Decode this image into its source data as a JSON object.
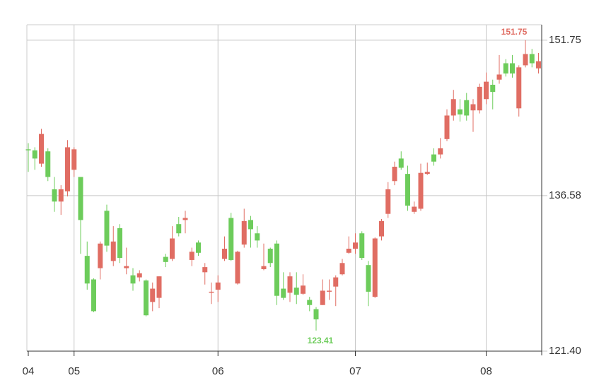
{
  "chart_data": {
    "type": "candlestick",
    "categories": [
      "04",
      null,
      null,
      null,
      null,
      null,
      null,
      "05",
      null,
      null,
      null,
      null,
      null,
      null,
      null,
      null,
      null,
      null,
      null,
      null,
      null,
      null,
      null,
      null,
      null,
      null,
      null,
      null,
      null,
      "06",
      null,
      null,
      null,
      null,
      null,
      null,
      null,
      null,
      null,
      null,
      null,
      null,
      null,
      null,
      null,
      null,
      null,
      null,
      null,
      null,
      "07",
      null,
      null,
      null,
      null,
      null,
      null,
      null,
      null,
      null,
      null,
      null,
      null,
      null,
      null,
      null,
      null,
      null,
      null,
      null,
      "08",
      null,
      null,
      null,
      null,
      null,
      null,
      null,
      null
    ],
    "open": [
      141.1,
      141.0,
      139.7,
      140.9,
      137.2,
      136.0,
      137.0,
      139.1,
      138.4,
      130.7,
      128.4,
      129.5,
      135.1,
      130.2,
      133.4,
      129.5,
      128.8,
      128.6,
      128.3,
      126.2,
      126.6,
      130.6,
      130.4,
      133.8,
      134.2,
      130.3,
      132.0,
      129.1,
      127.1,
      127.4,
      130.4,
      134.4,
      128.0,
      131.8,
      134.2,
      132.9,
      129.4,
      131.4,
      131.9,
      127.5,
      127.1,
      127.6,
      127.0,
      126.4,
      125.5,
      125.9,
      127.2,
      127.7,
      128.9,
      131.0,
      131.4,
      132.9,
      129.8,
      126.7,
      132.6,
      134.8,
      138.0,
      140.2,
      138.7,
      135.0,
      135.3,
      138.7,
      140.6,
      140.6,
      142.1,
      144.4,
      145.0,
      145.9,
      144.9,
      144.9,
      146.0,
      147.4,
      147.9,
      149.5,
      149.5,
      145.1,
      149.3,
      150.4,
      149.0
    ],
    "high": [
      141.7,
      141.3,
      143.1,
      141.2,
      138.4,
      137.6,
      142.0,
      141.3,
      138.4,
      132.1,
      128.5,
      132.1,
      135.7,
      133.6,
      133.8,
      131.5,
      129.5,
      129.3,
      128.4,
      128.1,
      128.7,
      130.9,
      133.6,
      134.5,
      135.1,
      131.5,
      132.2,
      130.0,
      128.1,
      128.8,
      132.6,
      134.9,
      131.2,
      135.3,
      134.6,
      133.6,
      131.9,
      131.5,
      132.2,
      129.1,
      129.1,
      129.1,
      128.9,
      126.7,
      125.7,
      128.4,
      128.4,
      128.8,
      130.4,
      132.6,
      132.9,
      133.1,
      130.2,
      132.5,
      134.3,
      137.9,
      139.9,
      140.9,
      139.5,
      136.0,
      139.7,
      139.8,
      141.2,
      142.2,
      145.0,
      146.9,
      146.0,
      146.6,
      146.0,
      147.5,
      148.6,
      147.9,
      150.3,
      149.9,
      150.3,
      149.3,
      151.75,
      150.9,
      150.5
    ],
    "low": [
      138.9,
      139.1,
      139.4,
      138.0,
      135.0,
      134.7,
      136.5,
      138.4,
      130.9,
      127.4,
      125.2,
      128.4,
      131.1,
      129.7,
      130.0,
      128.9,
      127.3,
      128.2,
      124.8,
      125.3,
      125.6,
      129.6,
      130.2,
      132.6,
      132.9,
      129.7,
      130.7,
      127.9,
      126.0,
      126.2,
      130.2,
      130.2,
      127.9,
      131.5,
      131.5,
      131.5,
      129.3,
      129.6,
      125.9,
      126.4,
      126.2,
      126.0,
      126.9,
      125.3,
      123.41,
      125.9,
      126.4,
      125.8,
      128.8,
      130.9,
      130.9,
      130.3,
      125.8,
      126.6,
      132.2,
      134.4,
      137.6,
      139.1,
      135.1,
      134.8,
      135.1,
      138.6,
      139.5,
      140.2,
      141.9,
      143.9,
      143.8,
      143.9,
      142.8,
      144.6,
      145.5,
      145.0,
      147.5,
      148.2,
      148.1,
      144.3,
      149.1,
      149.1,
      148.5
    ],
    "close": [
      141.0,
      140.2,
      142.6,
      138.4,
      136.0,
      137.2,
      141.3,
      141.1,
      134.2,
      128.0,
      125.3,
      131.9,
      131.7,
      132.1,
      130.5,
      129.7,
      128.0,
      129.0,
      124.9,
      127.5,
      128.7,
      130.1,
      132.4,
      132.9,
      134.4,
      131.1,
      131.0,
      129.6,
      127.2,
      128.1,
      131.4,
      130.3,
      131.1,
      134.1,
      133.3,
      132.2,
      129.7,
      130.0,
      126.8,
      126.6,
      128.7,
      126.9,
      127.8,
      125.9,
      124.5,
      127.3,
      127.3,
      128.6,
      130.0,
      131.4,
      132.0,
      130.5,
      127.2,
      132.4,
      134.1,
      137.2,
      139.4,
      139.3,
      135.6,
      135.5,
      138.8,
      138.9,
      139.9,
      141.2,
      144.4,
      146.0,
      144.5,
      144.4,
      145.5,
      147.2,
      147.7,
      146.7,
      148.4,
      148.5,
      148.5,
      149.1,
      150.4,
      149.5,
      149.7
    ],
    "up_color": "#e06d63",
    "down_color": "#6dcc5b",
    "ylim": [
      121.4,
      153.26
    ],
    "yticks": [
      {
        "value": 121.4,
        "label": "121.40"
      },
      136.58,
      151.75
    ],
    "grid": true
  }
}
